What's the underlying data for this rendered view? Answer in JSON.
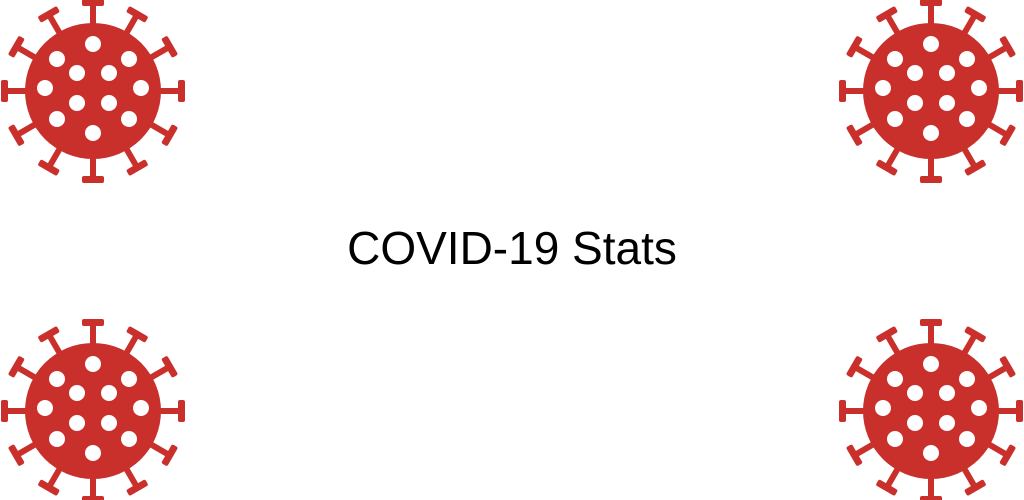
{
  "title": "COVID-19 Stats",
  "icons": [
    {
      "icon": "virus-icon",
      "corner": "top-left"
    },
    {
      "icon": "virus-icon",
      "corner": "top-right"
    },
    {
      "icon": "virus-icon",
      "corner": "bottom-left"
    },
    {
      "icon": "virus-icon",
      "corner": "bottom-right"
    }
  ],
  "colors": {
    "background": "#ffffff",
    "virus": "#c9302c",
    "text": "#000000"
  }
}
